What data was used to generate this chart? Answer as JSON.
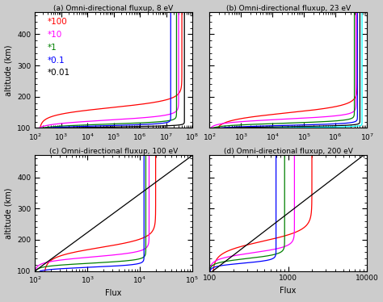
{
  "panels": [
    {
      "title": "(a) Omni-directional fluxup, 8 eV",
      "xlim": [
        100.0,
        100000000.0
      ],
      "ylim": [
        100,
        470
      ]
    },
    {
      "title": "(b) Omni-directional fluxup, 23 eV",
      "xlim": [
        100.0,
        10000000.0
      ],
      "ylim": [
        100,
        470
      ]
    },
    {
      "title": "(c) Omni-directional fluxup, 100 eV",
      "xlim": [
        100.0,
        100000.0
      ],
      "ylim": [
        100,
        470
      ]
    },
    {
      "title": "(d) Omni-directional fluxup, 200 eV",
      "xlim": [
        100,
        10000
      ],
      "ylim": [
        100,
        470
      ]
    }
  ],
  "ylabel": "altitude (km)",
  "xlabel": "Flux",
  "legend_labels": [
    "*100",
    "*10",
    "*1",
    "*0.1",
    "*0.01"
  ],
  "legend_colors": [
    "red",
    "magenta",
    "green",
    "blue",
    "black"
  ],
  "fig_facecolor": "#cccccc"
}
